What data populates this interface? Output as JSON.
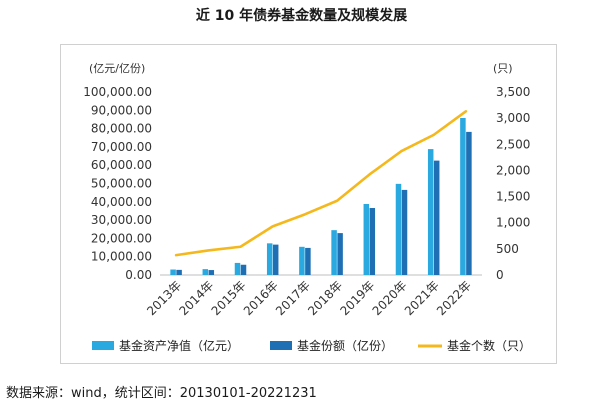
{
  "chart_data": {
    "type": "bar",
    "title": "近 10 年债券基金数量及规模发展",
    "categories": [
      "2013年",
      "2014年",
      "2015年",
      "2016年",
      "2017年",
      "2018年",
      "2019年",
      "2020年",
      "2021年",
      "2022年"
    ],
    "series": [
      {
        "name": "基金资产净值（亿元）",
        "type": "bar",
        "axis": "left",
        "color": "#2aa8e0",
        "values": [
          3000,
          3200,
          6600,
          17300,
          15400,
          24500,
          38800,
          49800,
          68800,
          85800
        ]
      },
      {
        "name": "基金份额（亿份）",
        "type": "bar",
        "axis": "left",
        "color": "#1f6fb4",
        "values": [
          2800,
          2700,
          5600,
          16600,
          14800,
          22900,
          36600,
          46500,
          62500,
          78200
        ]
      },
      {
        "name": "基金个数（只）",
        "type": "line",
        "axis": "right",
        "color": "#f5b81c",
        "values": [
          380,
          470,
          540,
          930,
          1160,
          1420,
          1920,
          2370,
          2680,
          3130
        ]
      }
    ],
    "left_axis": {
      "unit": "(亿元/亿份)",
      "ylim": [
        0,
        100000
      ],
      "ticks": [
        "0.00",
        "10,000.00",
        "20,000.00",
        "30,000.00",
        "40,000.00",
        "50,000.00",
        "60,000.00",
        "70,000.00",
        "80,000.00",
        "90,000.00",
        "100,000.00"
      ]
    },
    "right_axis": {
      "unit": "(只)",
      "ylim": [
        0,
        3500
      ],
      "ticks": [
        "0",
        "500",
        "1,000",
        "1,500",
        "2,000",
        "2,500",
        "3,000",
        "3,500"
      ]
    },
    "legend": [
      "基金资产净值（亿元）",
      "基金份额（亿份）",
      "基金个数（只）"
    ],
    "legend_position": "bottom",
    "grid": false
  },
  "source_note": "数据来源：wind，统计区间：20130101-20221231"
}
